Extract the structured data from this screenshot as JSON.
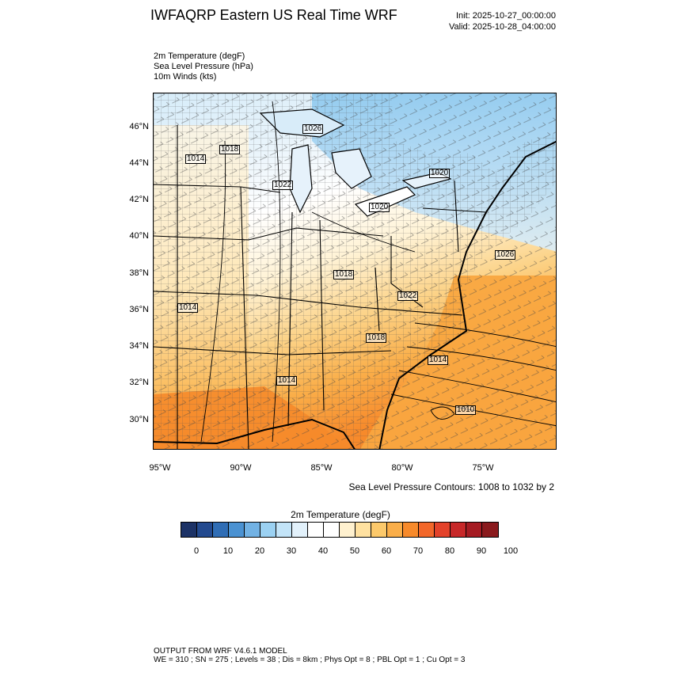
{
  "header": {
    "title": "IWFAQRP Eastern US Real Time WRF",
    "init": "Init: 2025-10-27_00:00:00",
    "valid": "Valid: 2025-10-28_04:00:00"
  },
  "fields": [
    "2m Temperature   (degF)",
    "Sea Level Pressure   (hPa)",
    "10m Winds   (kts)"
  ],
  "axes": {
    "lat_labels": [
      "46°N",
      "44°N",
      "42°N",
      "40°N",
      "38°N",
      "36°N",
      "34°N",
      "32°N",
      "30°N"
    ],
    "lon_labels": [
      "95°W",
      "90°W",
      "85°W",
      "80°W",
      "75°W"
    ]
  },
  "slp_labels": [
    "1026",
    "1018",
    "1014",
    "1022",
    "1020",
    "1020",
    "1026",
    "1018",
    "1014",
    "1022",
    "1018",
    "1014",
    "1014",
    "1010"
  ],
  "contours_note": "Sea Level Pressure Contours: 1008 to 1032 by 2",
  "colorbar": {
    "title": "2m Temperature  (degF)",
    "colors": [
      "#1c3266",
      "#234a8f",
      "#2f6db5",
      "#4b92d2",
      "#72b2e4",
      "#9bd1f2",
      "#c3e4f8",
      "#e2f1fb",
      "#ffffff",
      "#ffffff",
      "#fff1cf",
      "#ffe1a0",
      "#fcc96b",
      "#faae49",
      "#f78a2b",
      "#f2672a",
      "#e3422a",
      "#c72829",
      "#a51b22",
      "#8a1a1d"
    ],
    "ticks": [
      "0",
      "10",
      "20",
      "30",
      "40",
      "50",
      "60",
      "70",
      "80",
      "90",
      "100"
    ]
  },
  "footer": {
    "line1": "OUTPUT FROM WRF V4.6.1 MODEL",
    "line2": "WE = 310 ; SN = 275 ; Levels = 38 ; Dis = 8km ; Phys Opt = 8 ; PBL Opt = 1 ; Cu Opt = 3"
  }
}
